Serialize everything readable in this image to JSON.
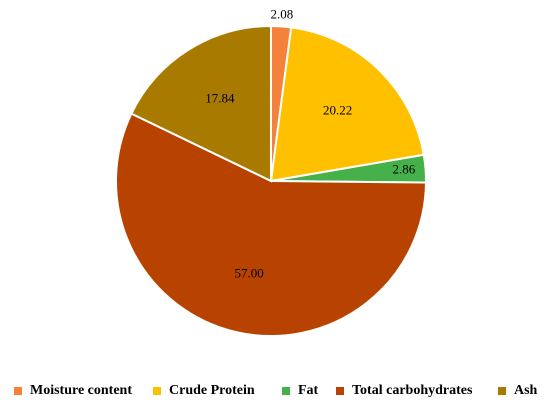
{
  "chart_data": {
    "type": "pie",
    "categories": [
      "Moisture content",
      "Crude Protein",
      "Fat",
      "Total carbohydrates",
      "Ash"
    ],
    "values": [
      2.08,
      20.22,
      2.86,
      57.0,
      17.84
    ],
    "value_labels": [
      "2.08",
      "20.22",
      "2.86",
      "57.00",
      "17.84"
    ],
    "colors": [
      "#F4823A",
      "#FFC000",
      "#46B04A",
      "#B84300",
      "#A87A00"
    ],
    "start_angle_deg": 0,
    "direction": "clockwise",
    "legend_position": "bottom",
    "title": ""
  }
}
